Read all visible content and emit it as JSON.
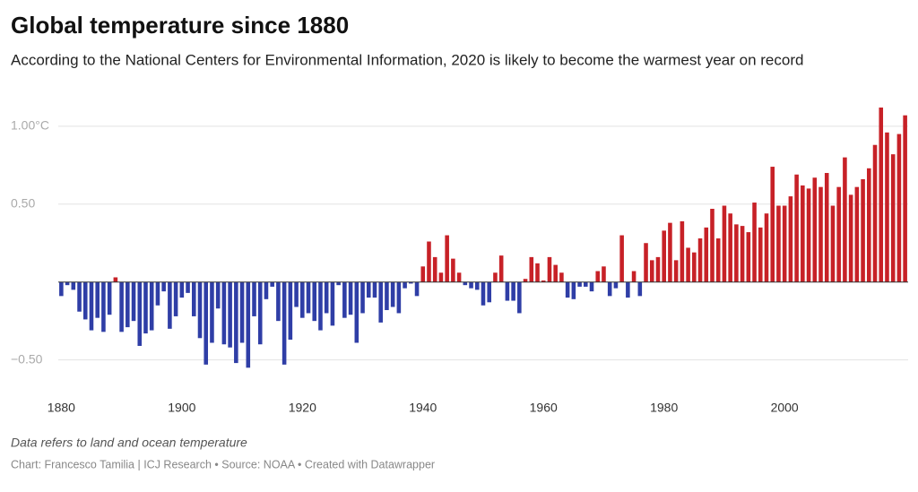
{
  "chart_data": {
    "type": "bar",
    "title": "Global temperature since 1880",
    "subtitle": "According to the National Centers for Environmental Information, 2020 is likely to become the warmest year on record",
    "notes": "Data refers to land and ocean temperature",
    "credits": "Chart: Francesco Tamilia | ICJ Research • Source: NOAA • Created with Datawrapper",
    "x_start": 1880,
    "values": [
      -0.09,
      -0.02,
      -0.05,
      -0.19,
      -0.24,
      -0.31,
      -0.23,
      -0.32,
      -0.21,
      0.03,
      -0.32,
      -0.29,
      -0.25,
      -0.41,
      -0.33,
      -0.31,
      -0.15,
      -0.06,
      -0.3,
      -0.22,
      -0.1,
      -0.07,
      -0.22,
      -0.36,
      -0.53,
      -0.39,
      -0.17,
      -0.4,
      -0.42,
      -0.52,
      -0.39,
      -0.55,
      -0.22,
      -0.4,
      -0.11,
      -0.03,
      -0.25,
      -0.53,
      -0.37,
      -0.16,
      -0.23,
      -0.2,
      -0.25,
      -0.31,
      -0.2,
      -0.28,
      -0.02,
      -0.23,
      -0.21,
      -0.39,
      -0.2,
      -0.1,
      -0.1,
      -0.26,
      -0.18,
      -0.16,
      -0.2,
      -0.04,
      -0.01,
      -0.09,
      0.1,
      0.26,
      0.16,
      0.06,
      0.3,
      0.15,
      0.06,
      -0.02,
      -0.04,
      -0.05,
      -0.15,
      -0.13,
      0.06,
      0.17,
      -0.12,
      -0.12,
      -0.2,
      0.02,
      0.16,
      0.12,
      0.01,
      0.16,
      0.11,
      0.06,
      -0.1,
      -0.11,
      -0.03,
      -0.03,
      -0.06,
      0.07,
      0.1,
      -0.09,
      -0.04,
      0.3,
      -0.1,
      0.07,
      -0.09,
      0.25,
      0.14,
      0.16,
      0.33,
      0.38,
      0.14,
      0.39,
      0.22,
      0.19,
      0.28,
      0.35,
      0.47,
      0.28,
      0.49,
      0.44,
      0.37,
      0.36,
      0.32,
      0.51,
      0.35,
      0.44,
      0.74,
      0.49,
      0.49,
      0.55,
      0.69,
      0.62,
      0.6,
      0.67,
      0.61,
      0.7,
      0.49,
      0.61,
      0.8,
      0.56,
      0.61,
      0.66,
      0.73,
      0.88,
      1.12,
      0.96,
      0.82,
      0.95,
      1.07
    ],
    "color_positive": "#c72127",
    "color_negative": "#2f3ea6",
    "xlim": [
      1879.5,
      2020.5
    ],
    "xticks": [
      1880,
      1900,
      1920,
      1940,
      1960,
      1980,
      2000
    ],
    "ylim": [
      -0.6,
      1.12
    ],
    "yticks": [
      {
        "value": 1,
        "label": "1.00°C"
      },
      {
        "value": 0.5,
        "label": "0.50"
      },
      {
        "value": -0.5,
        "label": "−0.50"
      }
    ],
    "grid": true
  }
}
